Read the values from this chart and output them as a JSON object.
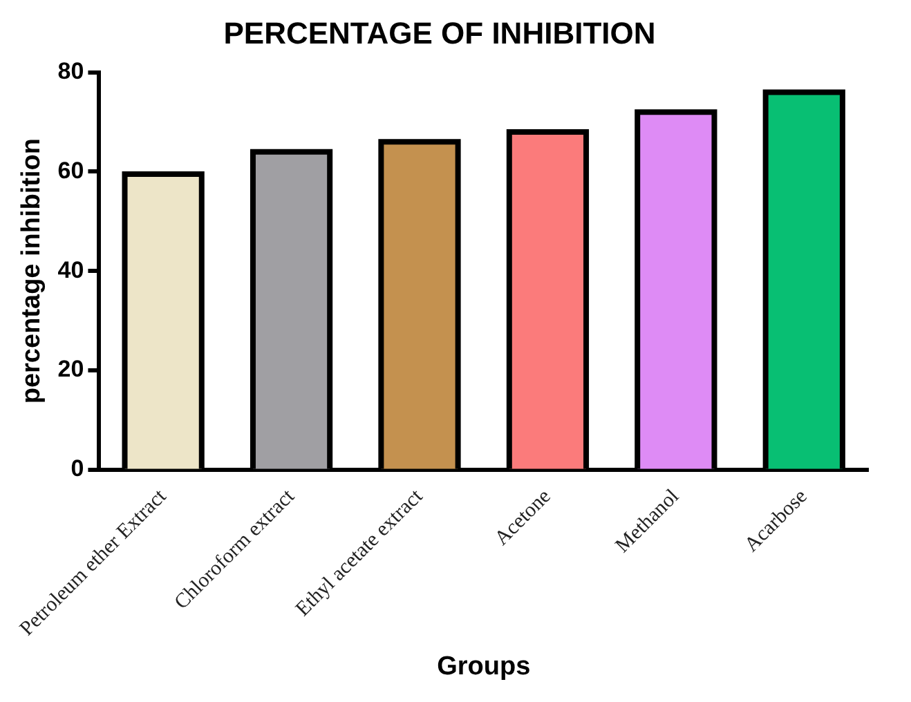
{
  "chart_data": {
    "type": "bar",
    "title": "PERCENTAGE OF INHIBITION",
    "xlabel": "Groups",
    "ylabel": "percentage inhibition",
    "categories": [
      "Petroleum ether Extract",
      "Chloroform extract",
      "Ethyl acetate extract",
      "Acetone",
      "Methanol",
      "Acarbose"
    ],
    "values": [
      59.5,
      64,
      66,
      68,
      72,
      76
    ],
    "colors": [
      "#ede5c8",
      "#a09fa3",
      "#c4914f",
      "#fb7b7b",
      "#de8bf5",
      "#08bf73"
    ],
    "ylim": [
      0,
      80
    ],
    "yticks": [
      0,
      20,
      40,
      60,
      80
    ],
    "grid": false,
    "legend": false
  }
}
